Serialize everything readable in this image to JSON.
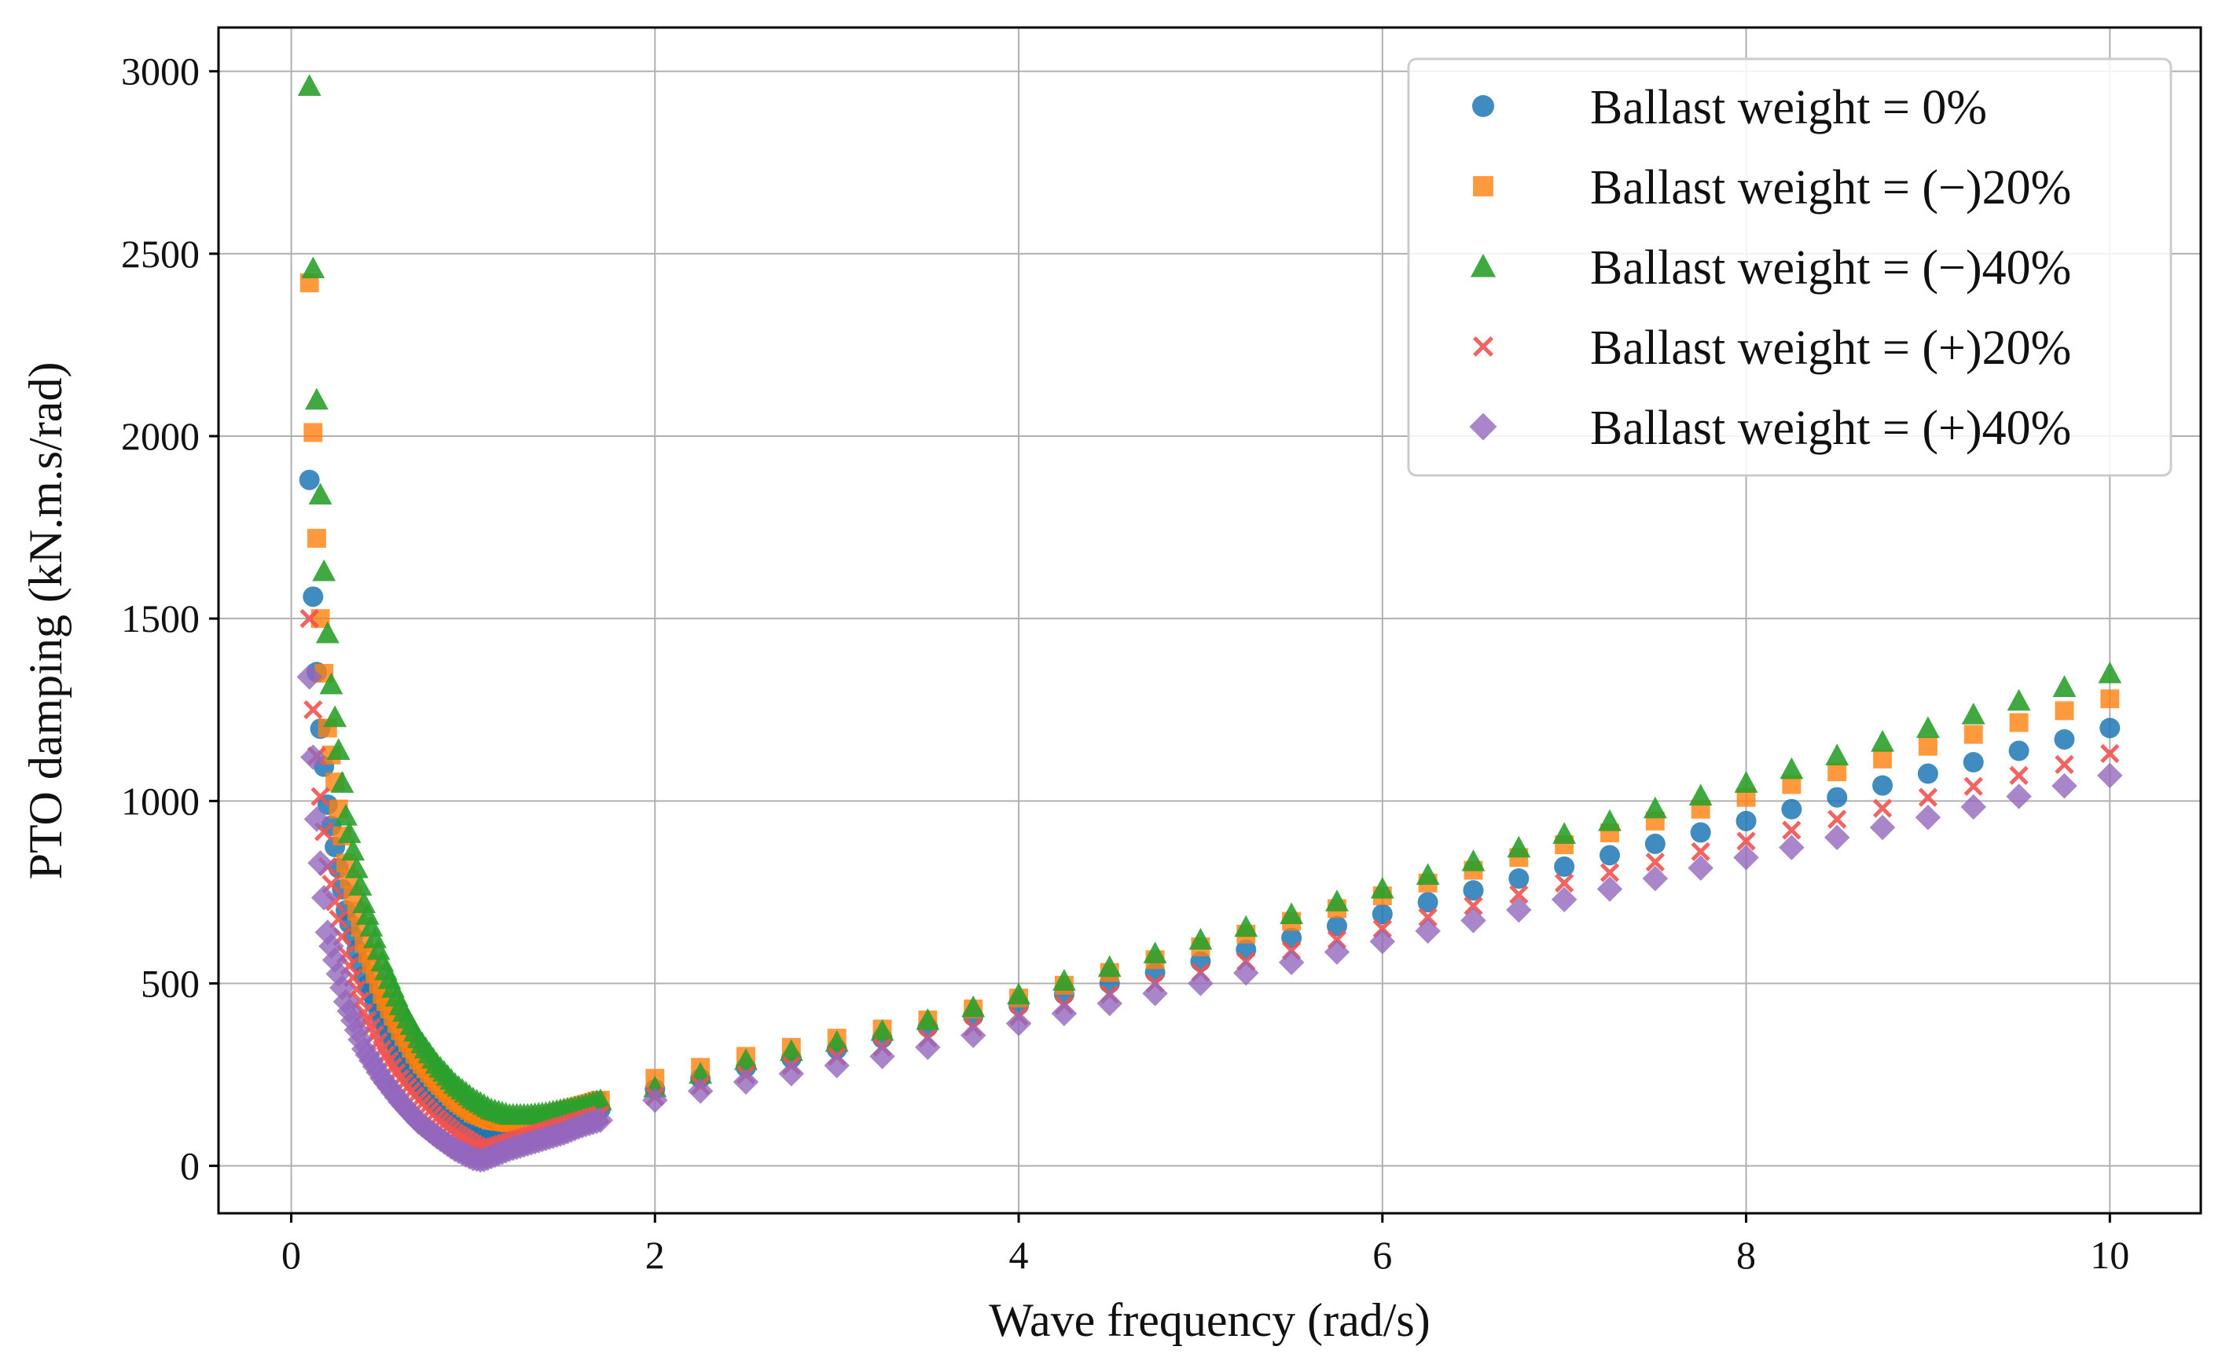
{
  "chart_data": {
    "type": "scatter",
    "title": "",
    "xlabel": "Wave frequency (rad/s)",
    "ylabel": "PTO damping (kN.m.s/rad)",
    "xlim": [
      -0.4,
      10.5
    ],
    "ylim": [
      -130,
      3120
    ],
    "x_ticks": [
      0,
      2,
      4,
      6,
      8,
      10
    ],
    "x_tick_labels": [
      "0",
      "2",
      "4",
      "6",
      "8",
      "10"
    ],
    "y_ticks": [
      0,
      500,
      1000,
      1500,
      2000,
      2500,
      3000
    ],
    "y_tick_labels": [
      "0",
      "500",
      "1000",
      "1500",
      "2000",
      "2500",
      "3000"
    ],
    "grid": true,
    "legend_position": "top-right",
    "x_sampling": "dense from 0.1 to 1.7 rad/s in steps of about 0.02, then every 0.25 rad/s from 2.0 to 10.0",
    "series": [
      {
        "name": "Ballast weight = 0%",
        "marker": "circle",
        "color": "#1f77b4",
        "knots": [
          [
            0.1,
            1880
          ],
          [
            0.12,
            1560
          ],
          [
            0.15,
            1250
          ],
          [
            0.2,
            990
          ],
          [
            0.3,
            700
          ],
          [
            0.4,
            520
          ],
          [
            0.5,
            400
          ],
          [
            0.6,
            300
          ],
          [
            0.7,
            230
          ],
          [
            0.8,
            170
          ],
          [
            0.9,
            120
          ],
          [
            1.0,
            85
          ],
          [
            1.05,
            75
          ],
          [
            1.1,
            70
          ],
          [
            1.2,
            80
          ],
          [
            1.3,
            95
          ],
          [
            1.4,
            110
          ],
          [
            1.5,
            125
          ],
          [
            1.6,
            140
          ],
          [
            1.7,
            155
          ],
          [
            2.0,
            210
          ],
          [
            2.5,
            270
          ],
          [
            3.0,
            320
          ],
          [
            3.5,
            380
          ],
          [
            4.0,
            440
          ],
          [
            5.0,
            560
          ],
          [
            6.0,
            690
          ],
          [
            7.0,
            820
          ],
          [
            8.0,
            945
          ],
          [
            9.0,
            1075
          ],
          [
            10.0,
            1200
          ]
        ]
      },
      {
        "name": "Ballast weight = (−)20%",
        "marker": "square",
        "color": "#ff7f0e",
        "knots": [
          [
            0.1,
            2420
          ],
          [
            0.12,
            2010
          ],
          [
            0.14,
            1720
          ],
          [
            0.16,
            1500
          ],
          [
            0.2,
            1200
          ],
          [
            0.3,
            830
          ],
          [
            0.4,
            610
          ],
          [
            0.5,
            470
          ],
          [
            0.6,
            370
          ],
          [
            0.7,
            290
          ],
          [
            0.8,
            230
          ],
          [
            0.9,
            180
          ],
          [
            1.0,
            145
          ],
          [
            1.1,
            125
          ],
          [
            1.2,
            118
          ],
          [
            1.3,
            125
          ],
          [
            1.4,
            135
          ],
          [
            1.5,
            150
          ],
          [
            1.6,
            165
          ],
          [
            1.7,
            180
          ],
          [
            2.0,
            240
          ],
          [
            2.5,
            300
          ],
          [
            3.0,
            350
          ],
          [
            3.5,
            400
          ],
          [
            4.0,
            460
          ],
          [
            5.0,
            600
          ],
          [
            6.0,
            740
          ],
          [
            7.0,
            880
          ],
          [
            8.0,
            1010
          ],
          [
            9.0,
            1150
          ],
          [
            10.0,
            1280
          ]
        ]
      },
      {
        "name": "Ballast weight = (−)40%",
        "marker": "triangle",
        "color": "#2ca02c",
        "knots": [
          [
            0.1,
            2960
          ],
          [
            0.12,
            2460
          ],
          [
            0.14,
            2100
          ],
          [
            0.16,
            1840
          ],
          [
            0.18,
            1630
          ],
          [
            0.2,
            1460
          ],
          [
            0.22,
            1320
          ],
          [
            0.3,
            960
          ],
          [
            0.4,
            720
          ],
          [
            0.5,
            560
          ],
          [
            0.6,
            440
          ],
          [
            0.7,
            350
          ],
          [
            0.8,
            280
          ],
          [
            0.9,
            225
          ],
          [
            1.0,
            185
          ],
          [
            1.1,
            155
          ],
          [
            1.2,
            140
          ],
          [
            1.3,
            140
          ],
          [
            1.4,
            145
          ],
          [
            1.5,
            155
          ],
          [
            1.6,
            165
          ],
          [
            1.7,
            180
          ],
          [
            2.0,
            215
          ],
          [
            2.5,
            290
          ],
          [
            3.0,
            340
          ],
          [
            3.5,
            400
          ],
          [
            4.0,
            470
          ],
          [
            5.0,
            620
          ],
          [
            6.0,
            760
          ],
          [
            7.0,
            910
          ],
          [
            8.0,
            1050
          ],
          [
            9.0,
            1200
          ],
          [
            10.0,
            1350
          ]
        ]
      },
      {
        "name": "Ballast weight = (+)20%",
        "marker": "x",
        "color": "#ef5350",
        "knots": [
          [
            0.1,
            1500
          ],
          [
            0.12,
            1250
          ],
          [
            0.15,
            1060
          ],
          [
            0.2,
            820
          ],
          [
            0.3,
            580
          ],
          [
            0.4,
            420
          ],
          [
            0.5,
            320
          ],
          [
            0.6,
            240
          ],
          [
            0.7,
            180
          ],
          [
            0.8,
            130
          ],
          [
            0.9,
            90
          ],
          [
            1.0,
            60
          ],
          [
            1.05,
            45
          ],
          [
            1.1,
            50
          ],
          [
            1.2,
            65
          ],
          [
            1.3,
            80
          ],
          [
            1.4,
            95
          ],
          [
            1.5,
            110
          ],
          [
            1.6,
            125
          ],
          [
            1.7,
            140
          ],
          [
            2.0,
            190
          ],
          [
            2.5,
            250
          ],
          [
            3.0,
            300
          ],
          [
            3.5,
            350
          ],
          [
            4.0,
            410
          ],
          [
            5.0,
            530
          ],
          [
            6.0,
            650
          ],
          [
            7.0,
            775
          ],
          [
            8.0,
            890
          ],
          [
            9.0,
            1010
          ],
          [
            10.0,
            1130
          ]
        ]
      },
      {
        "name": "Ballast weight = (+)40%",
        "marker": "diamond",
        "color": "#9467bd",
        "knots": [
          [
            0.1,
            1340
          ],
          [
            0.12,
            1120
          ],
          [
            0.14,
            950
          ],
          [
            0.16,
            830
          ],
          [
            0.2,
            640
          ],
          [
            0.3,
            450
          ],
          [
            0.4,
            320
          ],
          [
            0.5,
            240
          ],
          [
            0.6,
            175
          ],
          [
            0.7,
            120
          ],
          [
            0.8,
            80
          ],
          [
            0.9,
            45
          ],
          [
            1.0,
            20
          ],
          [
            1.05,
            15
          ],
          [
            1.1,
            25
          ],
          [
            1.2,
            45
          ],
          [
            1.3,
            60
          ],
          [
            1.4,
            75
          ],
          [
            1.5,
            90
          ],
          [
            1.6,
            110
          ],
          [
            1.7,
            125
          ],
          [
            2.0,
            180
          ],
          [
            2.5,
            230
          ],
          [
            3.0,
            275
          ],
          [
            3.5,
            325
          ],
          [
            4.0,
            390
          ],
          [
            5.0,
            500
          ],
          [
            6.0,
            615
          ],
          [
            7.0,
            730
          ],
          [
            8.0,
            845
          ],
          [
            9.0,
            955
          ],
          [
            10.0,
            1070
          ]
        ]
      }
    ]
  }
}
